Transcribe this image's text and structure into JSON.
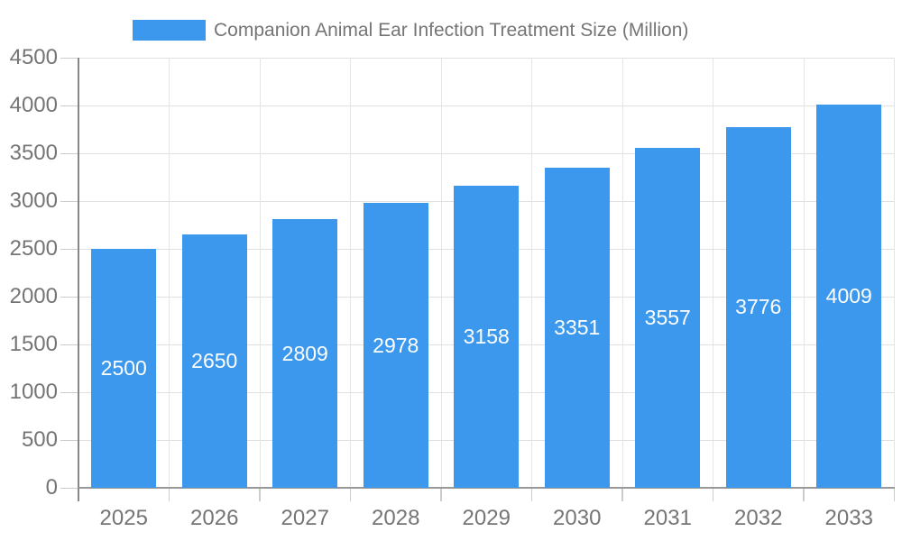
{
  "chart_data": {
    "type": "bar",
    "title": "Companion Animal Ear Infection Treatment Size (Million)",
    "legend": {
      "label": "Companion Animal Ear Infection Treatment Size (Million)",
      "position": "top"
    },
    "categories": [
      "2025",
      "2026",
      "2027",
      "2028",
      "2029",
      "2030",
      "2031",
      "2032",
      "2033"
    ],
    "series": [
      {
        "name": "Companion Animal Ear Infection Treatment Size (Million)",
        "values": [
          2500,
          2650,
          2809,
          2978,
          3158,
          3351,
          3557,
          3776,
          4009
        ]
      }
    ],
    "xlabel": "",
    "ylabel": "",
    "ylim": [
      0,
      4500
    ],
    "ytick_step": 500,
    "ytick_labels": [
      "0",
      "500",
      "1000",
      "1500",
      "2000",
      "2500",
      "3000",
      "3500",
      "4000",
      "4500"
    ],
    "grid": true,
    "data_labels": "inside-center",
    "colors": {
      "bar": "#3b98ec",
      "bar_label_text": "#ffffff",
      "axis_text": "#757575",
      "h_gridline": "#e0e0e0",
      "v_gridline": "#e6e6e6",
      "y_axis_line": "#888888",
      "x_axis_line": "#999999",
      "tick": "#cccccc",
      "background": "#ffffff"
    }
  }
}
